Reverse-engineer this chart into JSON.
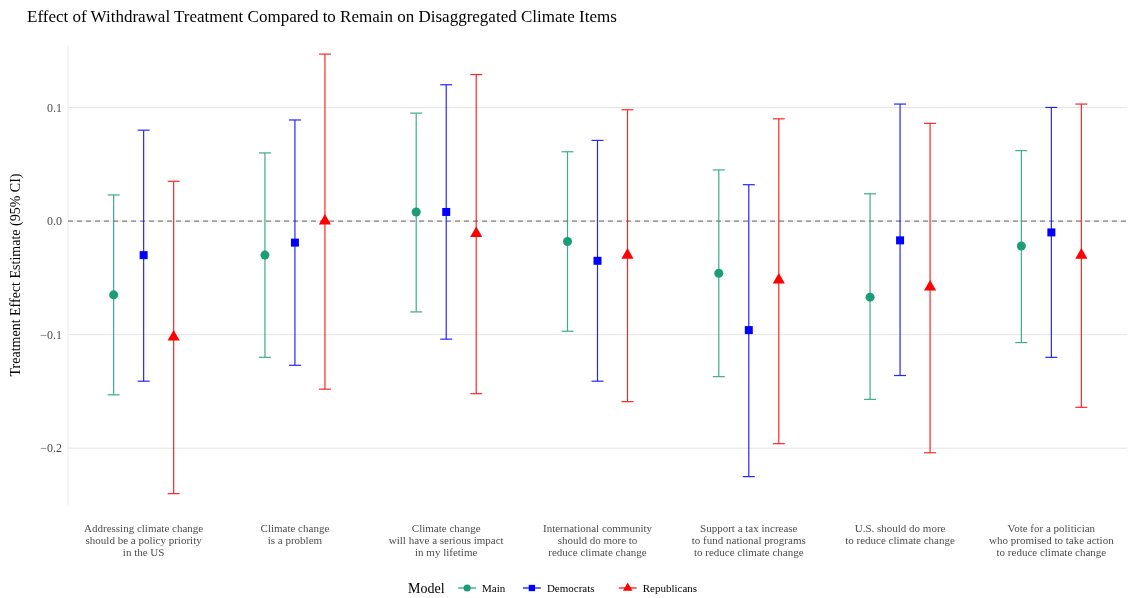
{
  "chart_data": {
    "type": "scatter",
    "title": "Effect of Withdrawal Treatment Compared to Remain on Disaggregated Climate Items",
    "ylabel": "Treatment Effect Estimate (95% CI)",
    "legend_title": "Model",
    "categories": [
      "Addressing climate change\nshould be a policy priority\nin the US",
      "Climate change\nis a problem",
      "Climate change\nwill have a serious impact\nin my lifetime",
      "International community\nshould do more to\nreduce climate change",
      "Support a tax increase\nto fund national programs\nto reduce climate change",
      "U.S. should do more\nto reduce climate change",
      "Vote for a politician\nwho promised to take action\nto reduce climate change"
    ],
    "series": [
      {
        "name": "Main",
        "color": "#1b9e77",
        "marker": "circle",
        "values": [
          -0.065,
          -0.03,
          0.008,
          -0.018,
          -0.046,
          -0.067,
          -0.022
        ],
        "errors": [
          [
            -0.153,
            0.023
          ],
          [
            -0.12,
            0.06
          ],
          [
            -0.08,
            0.095
          ],
          [
            -0.097,
            0.061
          ],
          [
            -0.137,
            0.045
          ],
          [
            -0.157,
            0.024
          ],
          [
            -0.107,
            0.062
          ]
        ]
      },
      {
        "name": "Democrats",
        "color": "#0000ff",
        "marker": "square",
        "values": [
          -0.03,
          -0.019,
          0.008,
          -0.035,
          -0.096,
          -0.017,
          -0.01
        ],
        "errors": [
          [
            -0.141,
            0.08
          ],
          [
            -0.127,
            0.089
          ],
          [
            -0.104,
            0.12
          ],
          [
            -0.141,
            0.071
          ],
          [
            -0.225,
            0.032
          ],
          [
            -0.136,
            0.103
          ],
          [
            -0.12,
            0.1
          ]
        ]
      },
      {
        "name": "Republicans",
        "color": "#ff0000",
        "marker": "triangle",
        "values": [
          -0.102,
          0.0,
          -0.011,
          -0.03,
          -0.052,
          -0.058,
          -0.03
        ],
        "errors": [
          [
            -0.24,
            0.035
          ],
          [
            -0.148,
            0.147
          ],
          [
            -0.152,
            0.129
          ],
          [
            -0.159,
            0.098
          ],
          [
            -0.196,
            0.09
          ],
          [
            -0.204,
            0.086
          ],
          [
            -0.164,
            0.103
          ]
        ]
      }
    ],
    "ylim": [
      -0.25,
      0.155
    ],
    "yticks": [
      {
        "value": -0.2,
        "label": "−0.2"
      },
      {
        "value": -0.1,
        "label": "−0.1"
      },
      {
        "value": 0,
        "label": "0.0"
      },
      {
        "value": 0.1,
        "label": "0.1"
      }
    ],
    "grid": "y",
    "legend": "bottom",
    "ref_lines": [
      {
        "axis": "y",
        "value": 0,
        "color": "#808080",
        "line_style": "dashed"
      }
    ]
  }
}
